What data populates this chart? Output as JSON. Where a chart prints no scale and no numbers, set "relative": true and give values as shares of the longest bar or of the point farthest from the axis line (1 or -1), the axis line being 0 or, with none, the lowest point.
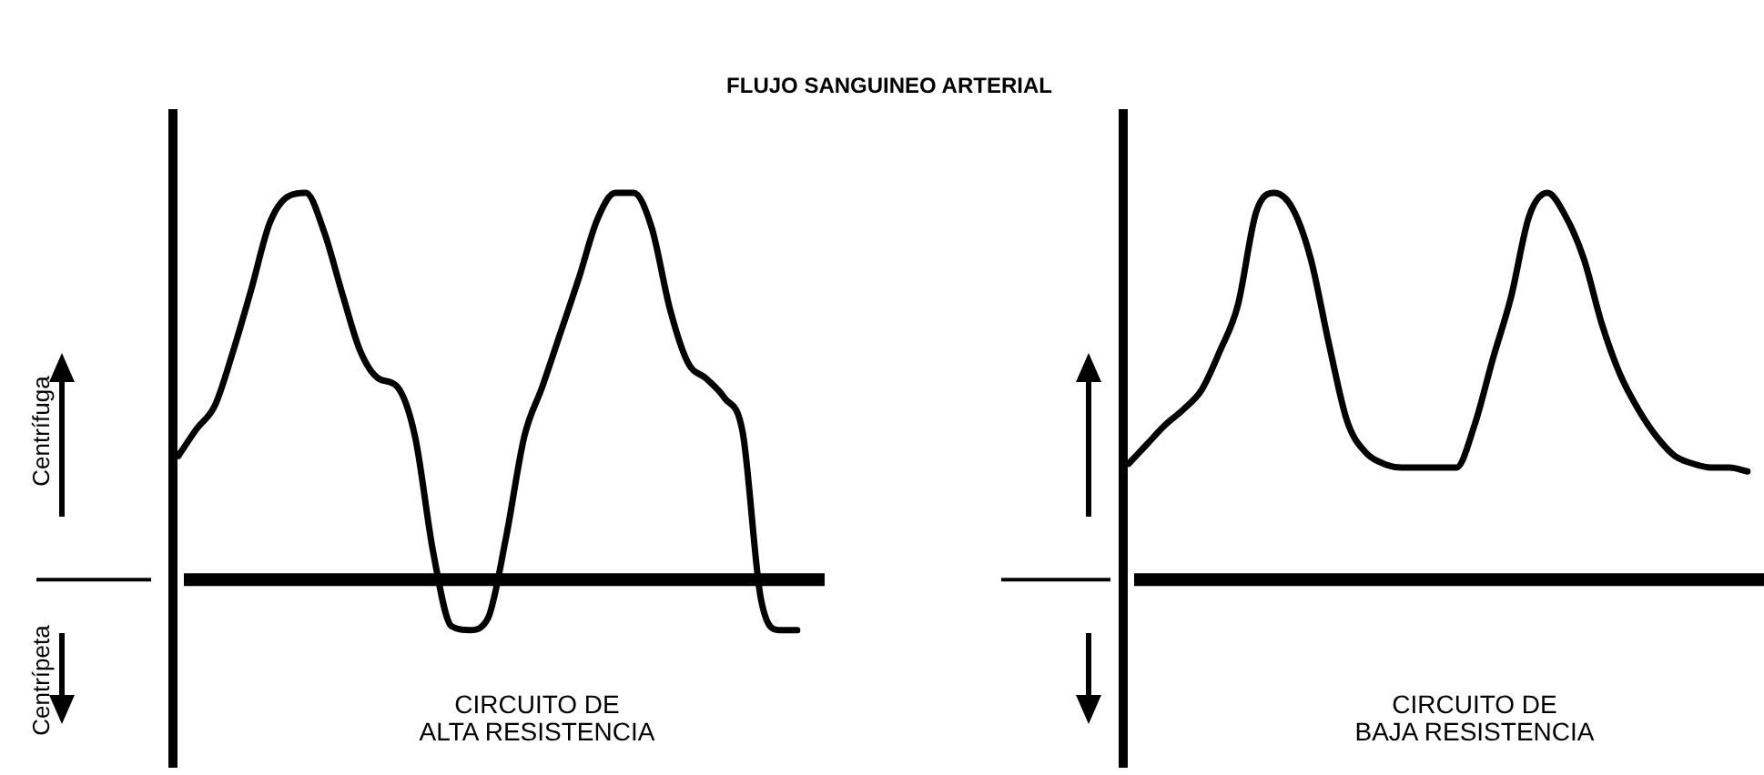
{
  "chart_data": [
    {
      "type": "line",
      "title": "FLUJO SANGUINEO ARTERIAL",
      "xlabel": "CIRCUITO DE\nALTA RESISTENCIA",
      "ylabel": "Centrífuga",
      "annotations": [
        "Centrípeta"
      ],
      "relative": true,
      "marker": "none",
      "categories": [
        null,
        null,
        null,
        null,
        null,
        null,
        null,
        null,
        null,
        null,
        null,
        null,
        null,
        null,
        null,
        null,
        null,
        null,
        null,
        null,
        null,
        null,
        null,
        null,
        null,
        null,
        null,
        null,
        null,
        null,
        null,
        null,
        null,
        null,
        null
      ],
      "series": [
        {
          "color": "#000000",
          "values": [
            0.32,
            0.39,
            0.45,
            0.59,
            0.75,
            0.92,
            0.99,
            1.0,
            0.9,
            0.74,
            0.59,
            0.52,
            0.5,
            0.37,
            0.07,
            -0.12,
            -0.13,
            -0.1,
            0.11,
            0.37,
            0.5,
            0.64,
            0.78,
            0.93,
            1.0,
            1.0,
            0.91,
            0.7,
            0.56,
            0.52,
            0.47,
            0.38,
            -0.05,
            -0.13,
            -0.13
          ]
        }
      ]
    },
    {
      "type": "line",
      "xlabel": "CIRCUITO DE\nBAJA RESISTENCIA",
      "relative": true,
      "marker": "none",
      "categories": [
        null,
        null,
        null,
        null,
        null,
        null,
        null,
        null,
        null,
        null,
        null,
        null,
        null,
        null,
        null,
        null,
        null,
        null,
        null,
        null,
        null,
        null,
        null,
        null,
        null,
        null,
        null,
        null,
        null,
        null,
        null,
        null,
        null,
        null,
        null
      ],
      "series": [
        {
          "color": "#000000",
          "values": [
            0.3,
            0.35,
            0.4,
            0.44,
            0.49,
            0.59,
            0.71,
            0.95,
            1.0,
            0.96,
            0.83,
            0.61,
            0.41,
            0.33,
            0.3,
            0.29,
            0.29,
            0.29,
            0.29,
            0.4,
            0.57,
            0.73,
            0.94,
            1.0,
            0.94,
            0.83,
            0.66,
            0.53,
            0.44,
            0.37,
            0.32,
            0.3,
            0.29,
            0.29,
            0.28
          ]
        }
      ]
    }
  ]
}
